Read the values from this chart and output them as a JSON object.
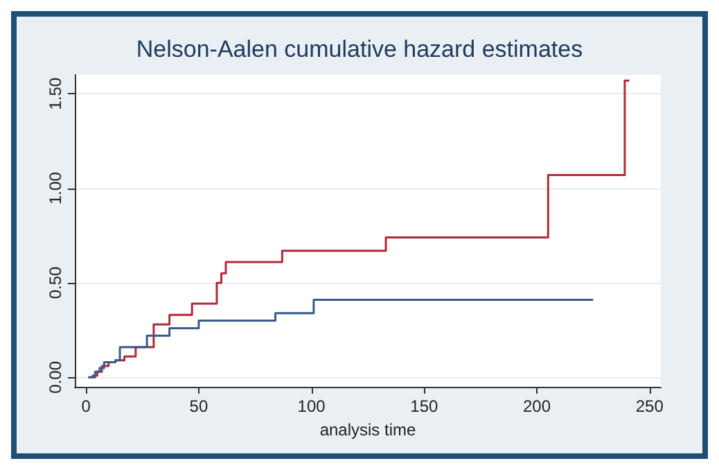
{
  "chart_data": {
    "type": "step",
    "title": "Nelson-Aalen cumulative hazard estimates",
    "xlabel": "analysis time",
    "series": [
      {
        "color": "#b22a3a",
        "x": [
          1,
          3,
          5,
          7,
          10,
          13,
          17,
          22,
          30,
          37,
          47,
          58,
          60,
          62,
          87,
          133,
          205,
          239,
          241
        ],
        "values": [
          0,
          0.01,
          0.03,
          0.06,
          0.08,
          0.09,
          0.11,
          0.16,
          0.28,
          0.33,
          0.39,
          0.5,
          0.55,
          0.61,
          0.67,
          0.74,
          1.07,
          1.57,
          1.57
        ]
      },
      {
        "color": "#3a5a8c",
        "x": [
          1,
          4,
          6,
          8,
          13,
          15,
          27,
          37,
          50,
          84,
          101,
          225
        ],
        "values": [
          0,
          0.03,
          0.05,
          0.08,
          0.09,
          0.16,
          0.22,
          0.26,
          0.3,
          0.34,
          0.41,
          0.41
        ]
      }
    ],
    "xlim": [
      -5,
      255
    ],
    "xticks": [
      0,
      50,
      100,
      150,
      200,
      250
    ],
    "ylim": [
      -0.05,
      1.6
    ],
    "yticks": [
      {
        "value": 0,
        "label": "0.00"
      },
      {
        "value": 0.5,
        "label": "0.50"
      },
      {
        "value": 1,
        "label": "1.00"
      },
      {
        "value": 1.5,
        "label": "1.50"
      }
    ],
    "grid": "y",
    "marker": "none",
    "line_style": "solid"
  }
}
